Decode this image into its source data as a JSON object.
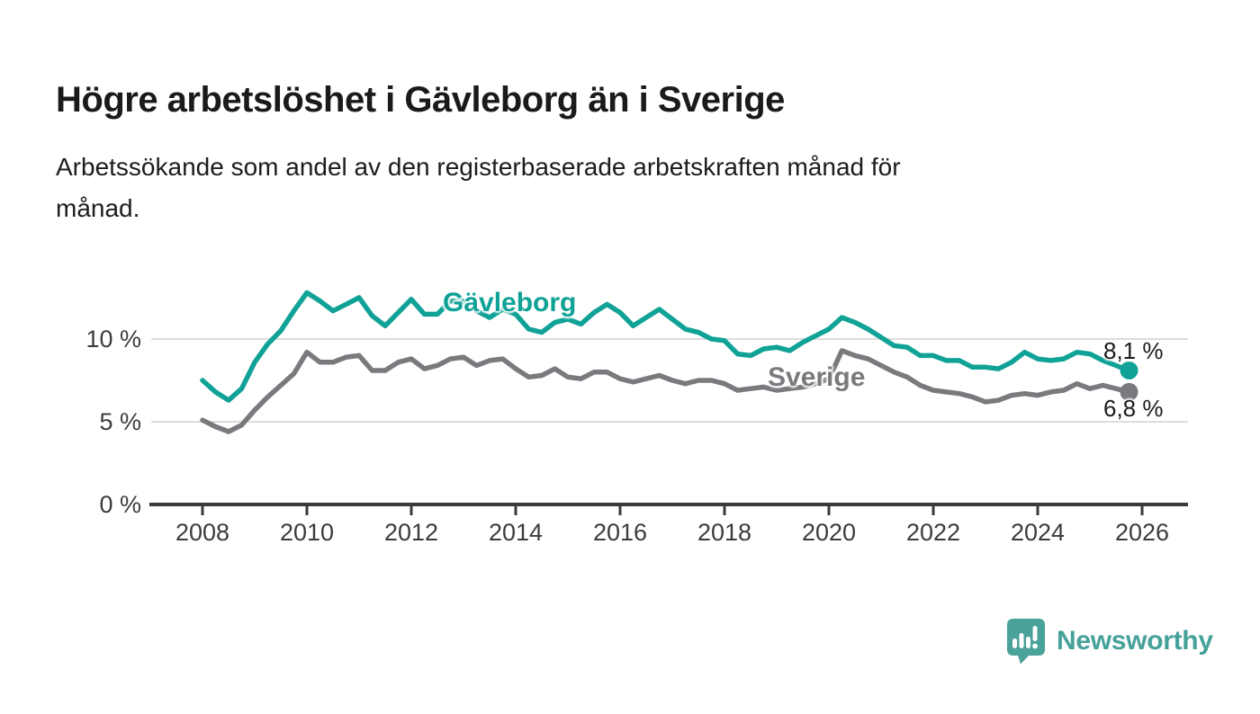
{
  "header": {
    "title": "Högre arbetslöshet i Gävleborg än i Sverige",
    "subtitle_lines": [
      "Arbetssökande som andel av den registerbaserade arbetskraften månad för",
      "månad."
    ]
  },
  "chart_data": {
    "type": "line",
    "title": "Högre arbetslöshet i Gävleborg än i Sverige",
    "subtitle": "Arbetssökande som andel av den registerbaserade arbetskraften månad för månad.",
    "unit": "%",
    "x_axis": {
      "ticks": [
        2008,
        2010,
        2012,
        2014,
        2016,
        2018,
        2020,
        2022,
        2024,
        2026
      ],
      "range": [
        2007.0,
        2026.9
      ]
    },
    "y_axis": {
      "ticks": [
        {
          "value": 0,
          "label": "0 %"
        },
        {
          "value": 5,
          "label": "5 %"
        },
        {
          "value": 10,
          "label": "10 %"
        }
      ],
      "gridlines": [
        5,
        10
      ],
      "range": [
        0,
        13.5
      ]
    },
    "legend_position": "inline-labels",
    "grid": true,
    "series": [
      {
        "name": "Gävleborg",
        "color": "#10a296",
        "end_label": "8,1 %",
        "end_value": 8.1,
        "x_start": 2008.0,
        "x_step": 0.25,
        "values": [
          7.5,
          6.8,
          6.3,
          7.0,
          8.6,
          9.7,
          10.5,
          11.7,
          12.8,
          12.3,
          11.7,
          12.1,
          12.5,
          11.4,
          10.8,
          11.6,
          12.4,
          11.5,
          11.5,
          12.3,
          12.3,
          11.7,
          11.3,
          11.8,
          11.5,
          10.6,
          10.4,
          11.0,
          11.2,
          10.9,
          11.6,
          12.1,
          11.6,
          10.8,
          11.3,
          11.8,
          11.2,
          10.6,
          10.4,
          10.0,
          9.9,
          9.1,
          9.0,
          9.4,
          9.5,
          9.3,
          9.8,
          10.2,
          10.6,
          11.3,
          11.0,
          10.6,
          10.1,
          9.6,
          9.5,
          9.0,
          9.0,
          8.7,
          8.7,
          8.3,
          8.3,
          8.2,
          8.6,
          9.2,
          8.8,
          8.7,
          8.8,
          9.2,
          9.1,
          8.7,
          8.4,
          8.1
        ]
      },
      {
        "name": "Sverige",
        "color": "#7a7a7e",
        "end_label": "6,8 %",
        "end_value": 6.8,
        "x_start": 2008.0,
        "x_step": 0.25,
        "values": [
          5.1,
          4.7,
          4.4,
          4.8,
          5.7,
          6.5,
          7.2,
          7.9,
          9.2,
          8.6,
          8.6,
          8.9,
          9.0,
          8.1,
          8.1,
          8.6,
          8.8,
          8.2,
          8.4,
          8.8,
          8.9,
          8.4,
          8.7,
          8.8,
          8.2,
          7.7,
          7.8,
          8.2,
          7.7,
          7.6,
          8.0,
          8.0,
          7.6,
          7.4,
          7.6,
          7.8,
          7.5,
          7.3,
          7.5,
          7.5,
          7.3,
          6.9,
          7.0,
          7.1,
          6.9,
          7.0,
          7.1,
          7.3,
          7.6,
          9.3,
          9.0,
          8.8,
          8.4,
          8.0,
          7.7,
          7.2,
          6.9,
          6.8,
          6.7,
          6.5,
          6.2,
          6.3,
          6.6,
          6.7,
          6.6,
          6.8,
          6.9,
          7.3,
          7.0,
          7.2,
          7.0,
          6.8
        ]
      }
    ]
  },
  "colors": {
    "accent_teal": "#10a296",
    "line_gray": "#7a7a7e",
    "gridline": "#dcdcdc",
    "axis": "#3a3a3a",
    "text_dark": "#1a1a1a",
    "brand_teal": "#46a19a"
  },
  "footer": {
    "brand": "Newsworthy",
    "icon": "speech-bubble-bar-chart-icon"
  }
}
